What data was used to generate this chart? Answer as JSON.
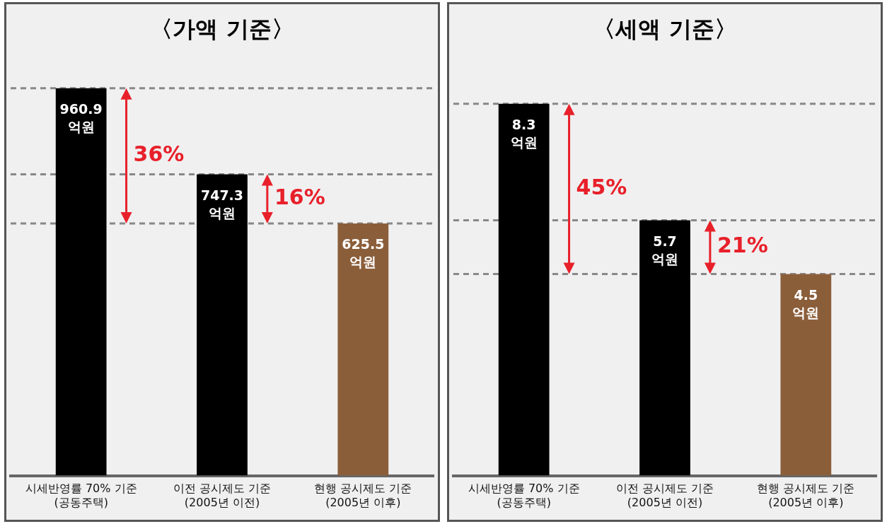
{
  "chart_data": [
    {
      "type": "bar",
      "title": "〈가액 기준〉",
      "categories": [
        "시세반영률 70% 기준\n(공동주택)",
        "이전 공시제도 기준\n(2005년 이전)",
        "현행 공시제도 기준\n(2005년 이후)"
      ],
      "values": [
        960.9,
        747.3,
        625.5
      ],
      "colors": [
        "#000000",
        "#000000",
        "#8b5e3a"
      ],
      "value_labels": [
        "960.9 억원",
        "747.3 억원",
        "625.5 억원"
      ],
      "ref_lines": [
        {
          "axis": "y",
          "value": 960.9,
          "color": "#888888",
          "line_style": "dashed"
        },
        {
          "axis": "y",
          "value": 747.3,
          "color": "#888888",
          "line_style": "dashed"
        },
        {
          "axis": "y",
          "value": 625.5,
          "color": "#888888",
          "line_style": "dashed"
        }
      ],
      "annotations": [
        "36%",
        "16%"
      ],
      "grid": false,
      "legend": false
    },
    {
      "type": "bar",
      "title": "〈세액 기준〉",
      "categories": [
        "시세반영률 70% 기준\n(공동주택)",
        "이전 공시제도 기준\n(2005년 이전)",
        "현행 공시제도 기준\n(2005년 이후)"
      ],
      "values": [
        8.3,
        5.7,
        4.5
      ],
      "colors": [
        "#000000",
        "#000000",
        "#8b5e3a"
      ],
      "value_labels": [
        "8.3 억원",
        "5.7 억원",
        "4.5 억원"
      ],
      "ref_lines": [
        {
          "axis": "y",
          "value": 8.3,
          "color": "#888888",
          "line_style": "dashed"
        },
        {
          "axis": "y",
          "value": 5.7,
          "color": "#888888",
          "line_style": "dashed"
        },
        {
          "axis": "y",
          "value": 4.5,
          "color": "#888888",
          "line_style": "dashed"
        }
      ],
      "annotations": [
        "45%",
        "21%"
      ],
      "grid": false,
      "legend": false
    }
  ]
}
